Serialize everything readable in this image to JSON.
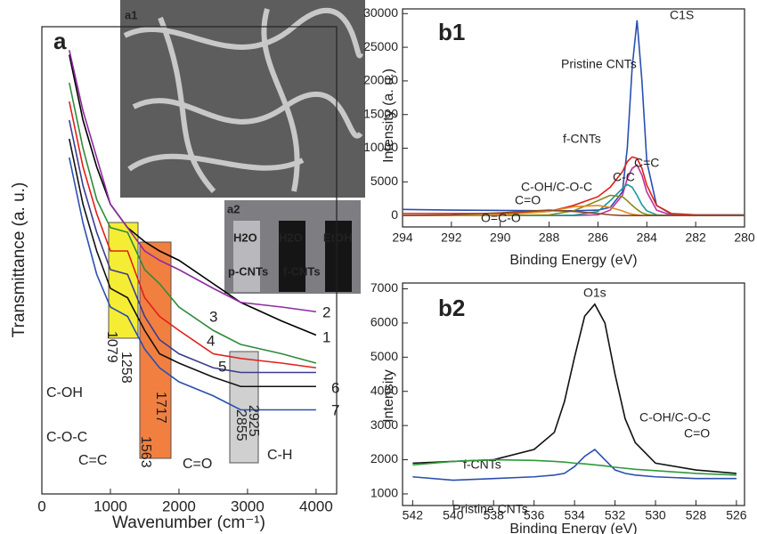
{
  "chart_data": [
    {
      "type": "line",
      "title": "a",
      "x_label": "Wavenumber (cm⁻¹)",
      "y_label": "Transmittance (a. u.)",
      "xlim": [
        0,
        4300
      ],
      "ylim": [
        0,
        100
      ],
      "xticks": [
        0,
        1000,
        2000,
        3000,
        4000
      ],
      "x": [
        400,
        600,
        800,
        1000,
        1250,
        1500,
        1717,
        2000,
        2500,
        2900,
        3500,
        4000
      ],
      "series": [
        {
          "name": "1",
          "color": "#000000",
          "values": [
            94,
            80,
            70,
            62,
            57,
            54,
            52,
            50,
            45,
            41,
            37,
            34
          ]
        },
        {
          "name": "2",
          "color": "#8e2c9e",
          "values": [
            95,
            82,
            72,
            62,
            57,
            52,
            50,
            48,
            44,
            41,
            40,
            39
          ]
        },
        {
          "name": "3",
          "color": "#2e8b3a",
          "values": [
            88,
            74,
            63,
            57,
            56,
            48,
            45,
            40,
            35,
            32,
            30,
            28
          ]
        },
        {
          "name": "4",
          "color": "#e0201b",
          "values": [
            84,
            70,
            60,
            52,
            52,
            42,
            38,
            35,
            30,
            29,
            28,
            27
          ]
        },
        {
          "name": "5",
          "color": "#3b3b8f",
          "values": [
            80,
            66,
            56,
            48,
            47,
            38,
            33,
            30,
            27,
            26,
            26,
            26
          ]
        },
        {
          "name": "6",
          "color": "#111111",
          "values": [
            76,
            62,
            52,
            44,
            42,
            35,
            30,
            28,
            25,
            23,
            23,
            23
          ]
        },
        {
          "name": "7",
          "color": "#2a4fb0",
          "values": [
            72,
            58,
            47,
            40,
            38,
            31,
            27,
            24,
            21,
            18,
            18,
            18
          ]
        }
      ],
      "annotations": [
        "a1",
        "a2",
        "H2O",
        "H2O",
        "EtOH",
        "p-CNTs",
        "f-CNTs",
        "1079",
        "1258",
        "1563",
        "1717",
        "2925",
        "2855",
        "C-OH",
        "C-O-C",
        "C=C",
        "C=O",
        "C-H"
      ]
    },
    {
      "type": "line",
      "title": "b1",
      "x_label": "Binding Energy (eV)",
      "y_label": "Intensity (a. u.)",
      "xlim": [
        294,
        280
      ],
      "ylim": [
        -1700,
        30700
      ],
      "xticks": [
        294,
        292,
        290,
        288,
        286,
        284,
        282,
        280
      ],
      "yticks": [
        0,
        5000,
        10000,
        15000,
        20000,
        25000,
        30000
      ],
      "x": [
        294,
        292,
        290,
        288,
        287,
        286,
        285.5,
        285,
        284.8,
        284.6,
        284.4,
        284.2,
        284,
        283.6,
        283,
        282,
        280
      ],
      "series": [
        {
          "name": "Pristine CNTs",
          "color": "#2a4fb0",
          "values": [
            900,
            800,
            750,
            700,
            700,
            800,
            1200,
            3500,
            10000,
            22000,
            29000,
            20000,
            8000,
            1500,
            200,
            100,
            100
          ]
        },
        {
          "name": "f-CNTs",
          "color": "#e0201b",
          "values": [
            300,
            300,
            300,
            600,
            1500,
            2800,
            4200,
            6500,
            8000,
            8700,
            8500,
            7000,
            4500,
            1500,
            300,
            100,
            50
          ]
        },
        {
          "name": "C=C",
          "color": "#c0309a",
          "values": [
            0,
            0,
            0,
            0,
            0,
            100,
            800,
            3000,
            5500,
            7000,
            7500,
            6000,
            3500,
            800,
            50,
            0,
            0
          ]
        },
        {
          "name": "C-C",
          "color": "#1a9a9a",
          "values": [
            0,
            0,
            0,
            0,
            50,
            600,
            2200,
            4000,
            4600,
            4200,
            3000,
            1600,
            700,
            100,
            0,
            0,
            0
          ]
        },
        {
          "name": "C-OH/C-O-C",
          "color": "#8a8a20",
          "values": [
            0,
            0,
            0,
            100,
            700,
            2200,
            3000,
            2800,
            2200,
            1500,
            900,
            400,
            150,
            0,
            0,
            0,
            0
          ]
        },
        {
          "name": "C=O",
          "color": "#e08a20",
          "values": [
            0,
            0,
            100,
            600,
            1300,
            1500,
            1200,
            700,
            400,
            200,
            100,
            0,
            0,
            0,
            0,
            0,
            0
          ]
        },
        {
          "name": "O=C-O",
          "color": "#8a4a20",
          "values": [
            0,
            100,
            400,
            800,
            600,
            300,
            100,
            0,
            0,
            0,
            0,
            0,
            0,
            0,
            0,
            0,
            0
          ]
        }
      ],
      "annotations": [
        "C1S"
      ]
    },
    {
      "type": "line",
      "title": "b2",
      "x_label": "Binding Energy (eV)",
      "y_label": "Intensity",
      "xlim": [
        542.5,
        525.6
      ],
      "ylim": [
        660,
        7170
      ],
      "xticks": [
        542,
        540,
        538,
        536,
        534,
        532,
        530,
        528,
        526
      ],
      "yticks": [
        1000,
        2000,
        3000,
        4000,
        5000,
        6000,
        7000
      ],
      "x": [
        542,
        540,
        538,
        536,
        535,
        534.5,
        534,
        533.5,
        533,
        532.5,
        532,
        531.5,
        531,
        530,
        528,
        526
      ],
      "series": [
        {
          "name": "f-CNTs",
          "color": "#111111",
          "values": [
            1900,
            1950,
            2000,
            2300,
            2800,
            3700,
            5000,
            6200,
            6550,
            6000,
            4500,
            3200,
            2500,
            1900,
            1700,
            1600
          ]
        },
        {
          "name": "Pristine CNTs",
          "color": "#2a4fb0",
          "values": [
            1500,
            1400,
            1450,
            1500,
            1550,
            1600,
            1800,
            2100,
            2300,
            2000,
            1700,
            1600,
            1550,
            1500,
            1450,
            1450
          ]
        },
        {
          "name": "C-OH/C-O-C",
          "color": "#2e9a3a",
          "values": [
            1850,
            1950,
            2000,
            1980,
            1950,
            1930,
            1900,
            1880,
            1850,
            1820,
            1780,
            1750,
            1720,
            1680,
            1600,
            1550
          ]
        }
      ],
      "annotations": [
        "O1s",
        "C=O"
      ]
    }
  ]
}
